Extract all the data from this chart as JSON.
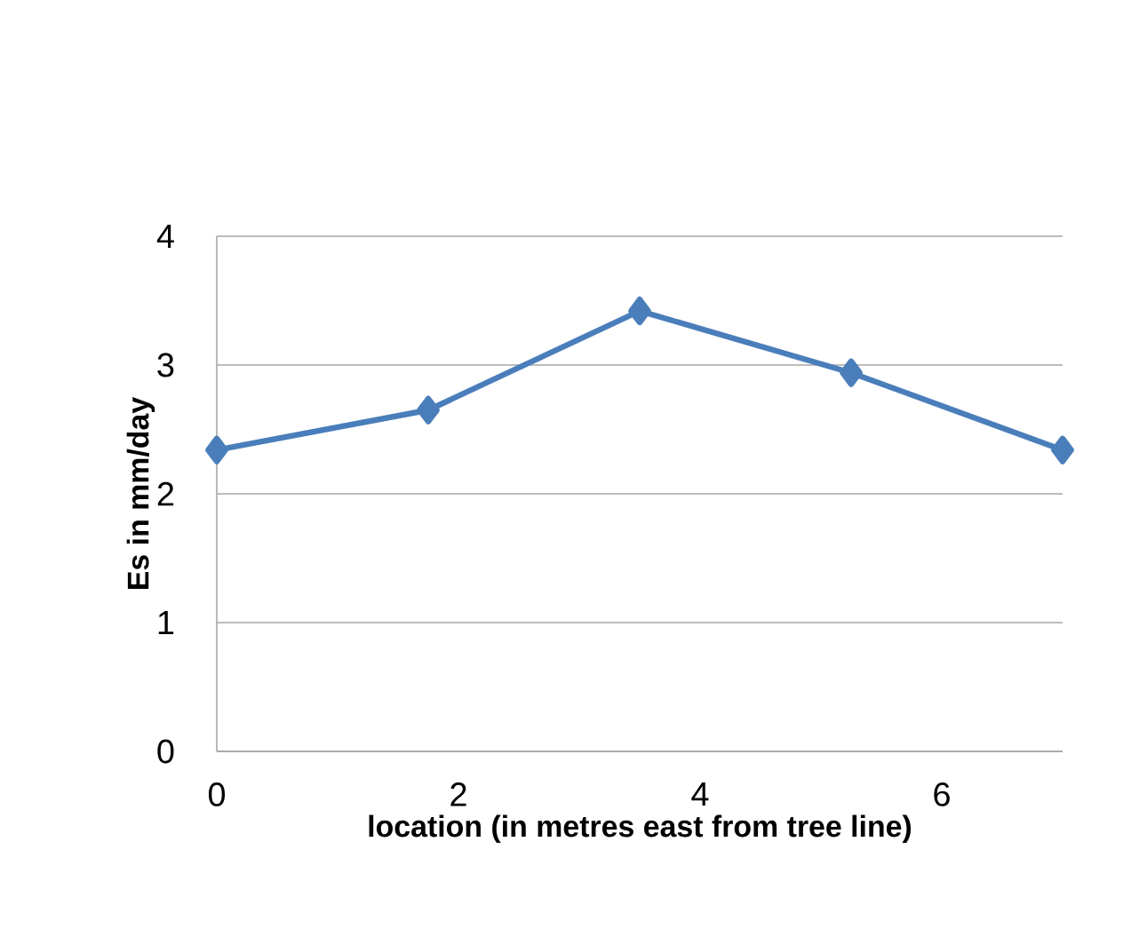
{
  "chart_data": {
    "type": "line",
    "xlabel": "location (in metres east from tree line)",
    "ylabel": "Es in mm/day",
    "x": [
      0,
      1.75,
      3.5,
      5.25,
      7
    ],
    "series": [
      {
        "color": "#4a7ebb",
        "values": [
          2.34,
          2.65,
          3.42,
          2.94,
          2.34
        ]
      }
    ],
    "xlim": [
      0,
      7
    ],
    "ylim": [
      0,
      4
    ],
    "xticks": [
      0,
      2,
      4,
      6
    ],
    "yticks": [
      0,
      1,
      2,
      3,
      4
    ],
    "grid": "y",
    "marker": "diamond",
    "line_style": "solid"
  }
}
